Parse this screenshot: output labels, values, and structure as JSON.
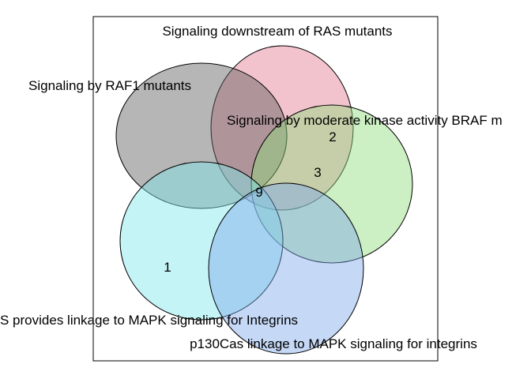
{
  "sets": [
    {
      "label": "Signaling downstream of RAS mutants",
      "color": "#e37b91"
    },
    {
      "label": "Signaling by RAF1 mutants",
      "color": "#5e5e5e"
    },
    {
      "label": "Signaling by moderate kinase activity BRAF m",
      "color": "#8fdc7c"
    },
    {
      "label": "S provides linkage to MAPK signaling for Integrins",
      "color": "#7fe6ea"
    },
    {
      "label": "p130Cas linkage to MAPK signaling for integrins",
      "color": "#7ea9ea"
    }
  ],
  "counts": [
    {
      "value": "2"
    },
    {
      "value": "3"
    },
    {
      "value": "9"
    },
    {
      "value": "1"
    }
  ]
}
